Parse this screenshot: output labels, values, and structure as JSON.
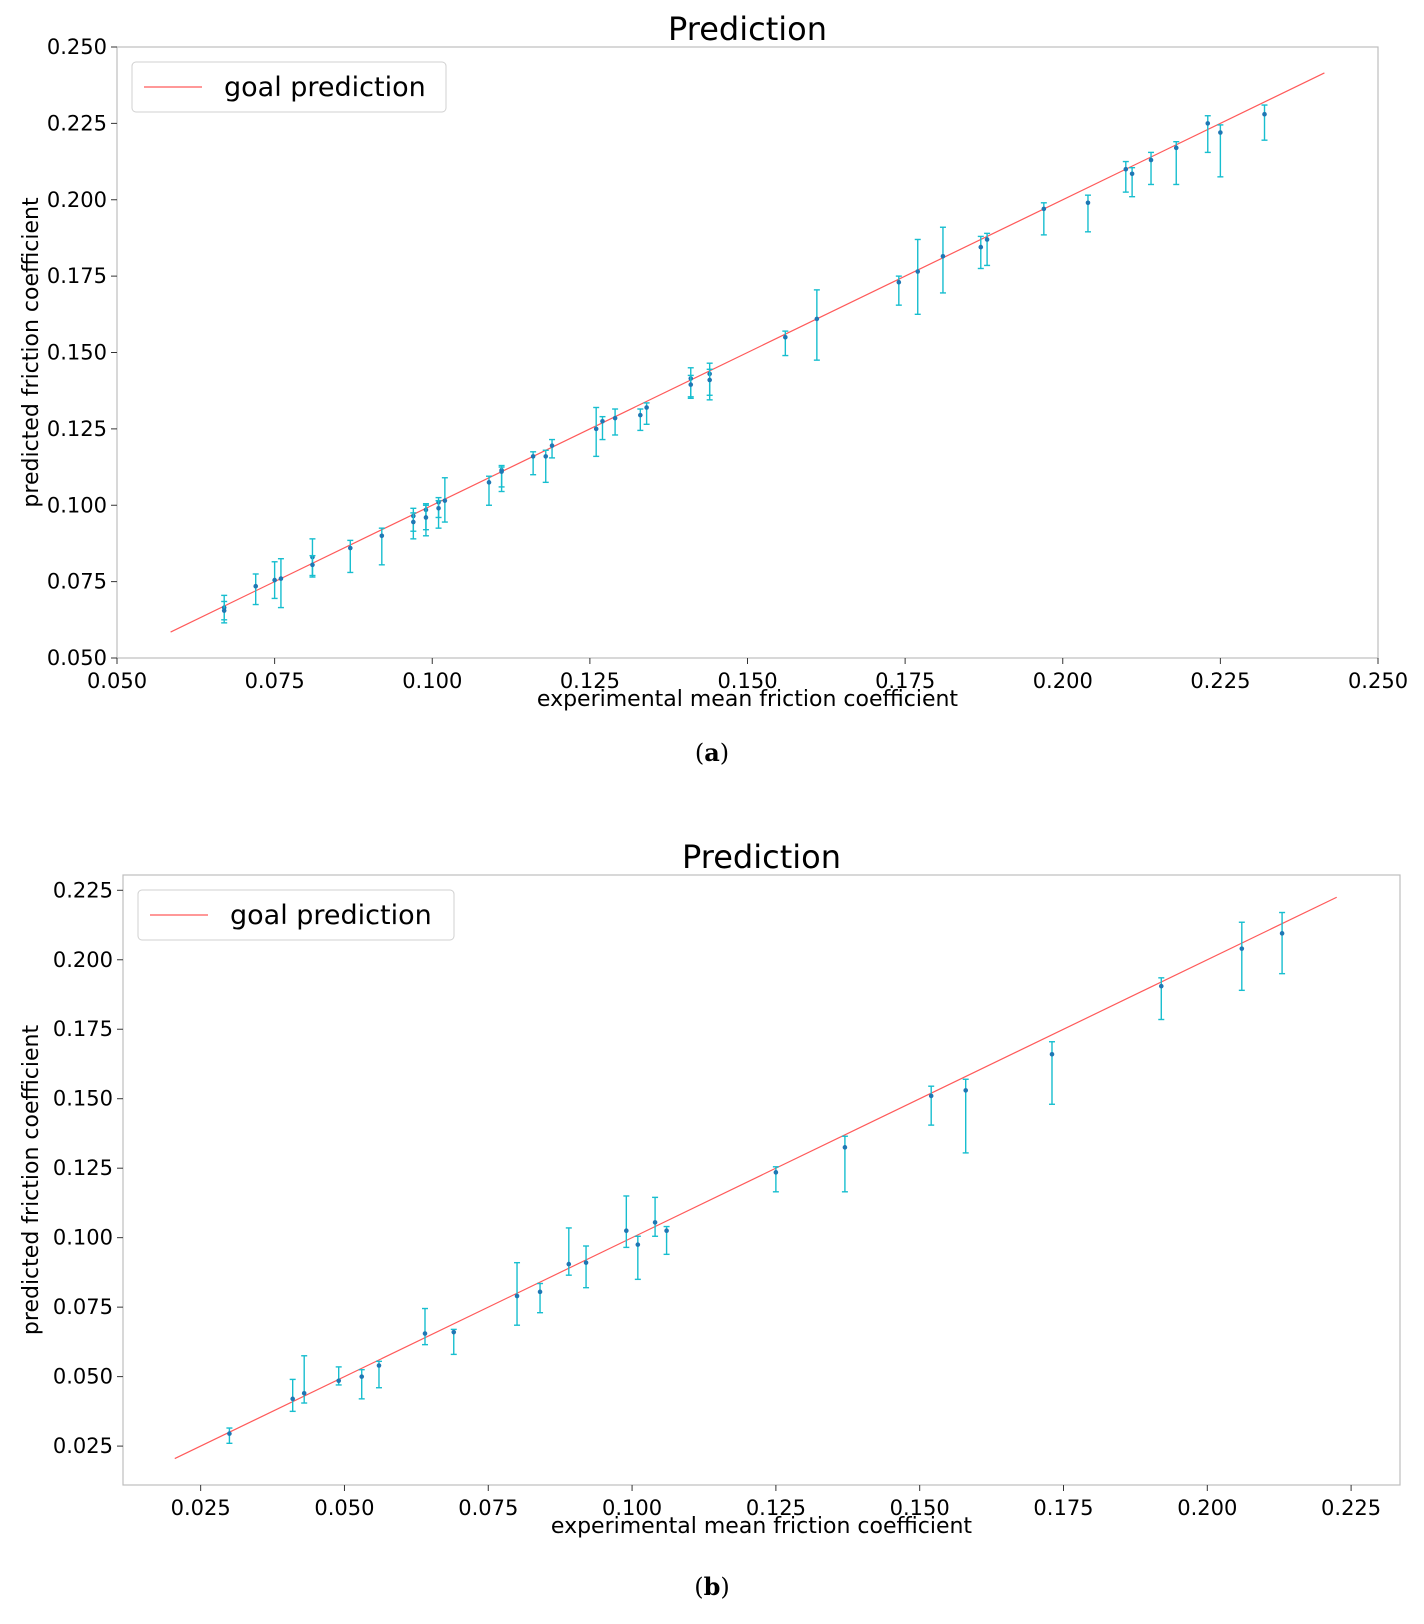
{
  "chart_data": [
    {
      "type": "scatter",
      "panel_label": "a",
      "title": "Prediction",
      "xlabel": "experimental mean friction coefficient",
      "ylabel": "predicted friction coefficient",
      "xlim": [
        0.05,
        0.25
      ],
      "ylim": [
        0.05,
        0.25
      ],
      "xticks": [
        "0.050",
        "0.075",
        "0.100",
        "0.125",
        "0.150",
        "0.175",
        "0.200",
        "0.225",
        "0.250"
      ],
      "yticks": [
        "0.050",
        "0.075",
        "0.100",
        "0.125",
        "0.150",
        "0.175",
        "0.200",
        "0.225",
        "0.250"
      ],
      "legend": {
        "label": "goal prediction",
        "position": "top-left"
      },
      "goal_line": {
        "x": [
          0.0585,
          0.2415
        ],
        "color": "#ff5a5a"
      },
      "colors": {
        "point": "#1f77b4",
        "errorbar": "#17becf"
      },
      "series": [
        {
          "name": "predictions",
          "points": [
            {
              "x": 0.067,
              "y": 0.0665,
              "lo": 0.0625,
              "hi": 0.0705
            },
            {
              "x": 0.067,
              "y": 0.0655,
              "lo": 0.0615,
              "hi": 0.0685
            },
            {
              "x": 0.072,
              "y": 0.0735,
              "lo": 0.0675,
              "hi": 0.0775
            },
            {
              "x": 0.075,
              "y": 0.0755,
              "lo": 0.0695,
              "hi": 0.0815
            },
            {
              "x": 0.076,
              "y": 0.076,
              "lo": 0.0665,
              "hi": 0.0825
            },
            {
              "x": 0.081,
              "y": 0.083,
              "lo": 0.0765,
              "hi": 0.089
            },
            {
              "x": 0.081,
              "y": 0.0805,
              "lo": 0.077,
              "hi": 0.0835
            },
            {
              "x": 0.087,
              "y": 0.086,
              "lo": 0.078,
              "hi": 0.0885
            },
            {
              "x": 0.092,
              "y": 0.09,
              "lo": 0.0805,
              "hi": 0.0925
            },
            {
              "x": 0.097,
              "y": 0.0965,
              "lo": 0.0915,
              "hi": 0.099
            },
            {
              "x": 0.097,
              "y": 0.0945,
              "lo": 0.089,
              "hi": 0.0975
            },
            {
              "x": 0.099,
              "y": 0.0985,
              "lo": 0.092,
              "hi": 0.1005
            },
            {
              "x": 0.099,
              "y": 0.096,
              "lo": 0.09,
              "hi": 0.1
            },
            {
              "x": 0.101,
              "y": 0.101,
              "lo": 0.096,
              "hi": 0.1025
            },
            {
              "x": 0.101,
              "y": 0.099,
              "lo": 0.0925,
              "hi": 0.1015
            },
            {
              "x": 0.102,
              "y": 0.1015,
              "lo": 0.0945,
              "hi": 0.109
            },
            {
              "x": 0.109,
              "y": 0.1075,
              "lo": 0.1,
              "hi": 0.1095
            },
            {
              "x": 0.111,
              "y": 0.1115,
              "lo": 0.1045,
              "hi": 0.113
            },
            {
              "x": 0.111,
              "y": 0.111,
              "lo": 0.106,
              "hi": 0.1125
            },
            {
              "x": 0.116,
              "y": 0.116,
              "lo": 0.11,
              "hi": 0.1175
            },
            {
              "x": 0.118,
              "y": 0.116,
              "lo": 0.1075,
              "hi": 0.118
            },
            {
              "x": 0.119,
              "y": 0.1195,
              "lo": 0.1155,
              "hi": 0.1215
            },
            {
              "x": 0.126,
              "y": 0.125,
              "lo": 0.116,
              "hi": 0.132
            },
            {
              "x": 0.127,
              "y": 0.1275,
              "lo": 0.1215,
              "hi": 0.129
            },
            {
              "x": 0.129,
              "y": 0.1285,
              "lo": 0.123,
              "hi": 0.1315
            },
            {
              "x": 0.133,
              "y": 0.1295,
              "lo": 0.1245,
              "hi": 0.1315
            },
            {
              "x": 0.134,
              "y": 0.132,
              "lo": 0.1265,
              "hi": 0.1335
            },
            {
              "x": 0.141,
              "y": 0.1415,
              "lo": 0.135,
              "hi": 0.145
            },
            {
              "x": 0.141,
              "y": 0.1395,
              "lo": 0.1355,
              "hi": 0.1425
            },
            {
              "x": 0.144,
              "y": 0.143,
              "lo": 0.1345,
              "hi": 0.1465
            },
            {
              "x": 0.144,
              "y": 0.141,
              "lo": 0.136,
              "hi": 0.1445
            },
            {
              "x": 0.156,
              "y": 0.155,
              "lo": 0.149,
              "hi": 0.157
            },
            {
              "x": 0.161,
              "y": 0.161,
              "lo": 0.1475,
              "hi": 0.1705
            },
            {
              "x": 0.174,
              "y": 0.173,
              "lo": 0.1655,
              "hi": 0.175
            },
            {
              "x": 0.177,
              "y": 0.1765,
              "lo": 0.1625,
              "hi": 0.187
            },
            {
              "x": 0.181,
              "y": 0.1815,
              "lo": 0.1695,
              "hi": 0.191
            },
            {
              "x": 0.187,
              "y": 0.1845,
              "lo": 0.1775,
              "hi": 0.188
            },
            {
              "x": 0.188,
              "y": 0.187,
              "lo": 0.1785,
              "hi": 0.189
            },
            {
              "x": 0.197,
              "y": 0.197,
              "lo": 0.1885,
              "hi": 0.199
            },
            {
              "x": 0.204,
              "y": 0.199,
              "lo": 0.1895,
              "hi": 0.2015
            },
            {
              "x": 0.21,
              "y": 0.21,
              "lo": 0.2025,
              "hi": 0.2125
            },
            {
              "x": 0.211,
              "y": 0.2085,
              "lo": 0.201,
              "hi": 0.2105
            },
            {
              "x": 0.214,
              "y": 0.213,
              "lo": 0.205,
              "hi": 0.2155
            },
            {
              "x": 0.218,
              "y": 0.217,
              "lo": 0.205,
              "hi": 0.219
            },
            {
              "x": 0.223,
              "y": 0.225,
              "lo": 0.2155,
              "hi": 0.2275
            },
            {
              "x": 0.225,
              "y": 0.222,
              "lo": 0.2075,
              "hi": 0.2245
            },
            {
              "x": 0.232,
              "y": 0.228,
              "lo": 0.2195,
              "hi": 0.231
            }
          ]
        }
      ]
    },
    {
      "type": "scatter",
      "panel_label": "b",
      "title": "Prediction",
      "xlabel": "experimental mean friction coefficient",
      "ylabel": "predicted friction coefficient",
      "xlim": [
        0.0115,
        0.2335
      ],
      "ylim": [
        0.011,
        0.2305
      ],
      "xticks": [
        "0.025",
        "0.050",
        "0.075",
        "0.100",
        "0.125",
        "0.150",
        "0.175",
        "0.200",
        "0.225"
      ],
      "yticks": [
        "0.025",
        "0.050",
        "0.075",
        "0.100",
        "0.125",
        "0.150",
        "0.175",
        "0.200",
        "0.225"
      ],
      "legend": {
        "label": "goal prediction",
        "position": "top-left"
      },
      "goal_line": {
        "x": [
          0.0205,
          0.2225
        ],
        "color": "#ff5a5a"
      },
      "colors": {
        "point": "#1f77b4",
        "errorbar": "#17becf"
      },
      "series": [
        {
          "name": "predictions",
          "points": [
            {
              "x": 0.03,
              "y": 0.0295,
              "lo": 0.026,
              "hi": 0.0315
            },
            {
              "x": 0.041,
              "y": 0.042,
              "lo": 0.0375,
              "hi": 0.049
            },
            {
              "x": 0.043,
              "y": 0.044,
              "lo": 0.0405,
              "hi": 0.0575
            },
            {
              "x": 0.049,
              "y": 0.0485,
              "lo": 0.047,
              "hi": 0.0535
            },
            {
              "x": 0.053,
              "y": 0.05,
              "lo": 0.042,
              "hi": 0.0525
            },
            {
              "x": 0.056,
              "y": 0.054,
              "lo": 0.046,
              "hi": 0.0555
            },
            {
              "x": 0.064,
              "y": 0.0655,
              "lo": 0.0615,
              "hi": 0.0745
            },
            {
              "x": 0.069,
              "y": 0.066,
              "lo": 0.058,
              "hi": 0.067
            },
            {
              "x": 0.08,
              "y": 0.079,
              "lo": 0.0685,
              "hi": 0.091
            },
            {
              "x": 0.084,
              "y": 0.0805,
              "lo": 0.073,
              "hi": 0.0835
            },
            {
              "x": 0.089,
              "y": 0.0905,
              "lo": 0.0865,
              "hi": 0.1035
            },
            {
              "x": 0.092,
              "y": 0.091,
              "lo": 0.082,
              "hi": 0.097
            },
            {
              "x": 0.099,
              "y": 0.1025,
              "lo": 0.0965,
              "hi": 0.115
            },
            {
              "x": 0.101,
              "y": 0.0975,
              "lo": 0.085,
              "hi": 0.1005
            },
            {
              "x": 0.104,
              "y": 0.1055,
              "lo": 0.1005,
              "hi": 0.1145
            },
            {
              "x": 0.106,
              "y": 0.1025,
              "lo": 0.094,
              "hi": 0.104
            },
            {
              "x": 0.125,
              "y": 0.1235,
              "lo": 0.1165,
              "hi": 0.1255
            },
            {
              "x": 0.137,
              "y": 0.1325,
              "lo": 0.1165,
              "hi": 0.1365
            },
            {
              "x": 0.152,
              "y": 0.151,
              "lo": 0.1405,
              "hi": 0.1545
            },
            {
              "x": 0.158,
              "y": 0.153,
              "lo": 0.1305,
              "hi": 0.157
            },
            {
              "x": 0.173,
              "y": 0.166,
              "lo": 0.148,
              "hi": 0.1705
            },
            {
              "x": 0.192,
              "y": 0.1905,
              "lo": 0.1785,
              "hi": 0.1935
            },
            {
              "x": 0.206,
              "y": 0.204,
              "lo": 0.189,
              "hi": 0.2135
            },
            {
              "x": 0.213,
              "y": 0.2095,
              "lo": 0.195,
              "hi": 0.217
            }
          ]
        }
      ]
    }
  ]
}
